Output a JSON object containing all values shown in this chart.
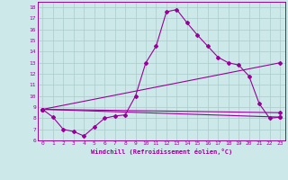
{
  "xlabel": "Windchill (Refroidissement éolien,°C)",
  "bg_color": "#cce8e8",
  "line_color": "#990099",
  "grid_color": "#aacccc",
  "xlim": [
    -0.5,
    23.5
  ],
  "ylim": [
    6.0,
    18.5
  ],
  "xticks": [
    0,
    1,
    2,
    3,
    4,
    5,
    6,
    7,
    8,
    9,
    10,
    11,
    12,
    13,
    14,
    15,
    16,
    17,
    18,
    19,
    20,
    21,
    22,
    23
  ],
  "yticks": [
    6,
    7,
    8,
    9,
    10,
    11,
    12,
    13,
    14,
    15,
    16,
    17,
    18
  ],
  "line1_x": [
    0,
    1,
    2,
    3,
    4,
    5,
    6,
    7,
    8,
    9,
    10,
    11,
    12,
    13,
    14,
    15,
    16,
    17,
    18,
    19,
    20,
    21,
    22,
    23
  ],
  "line1_y": [
    8.8,
    8.1,
    7.0,
    6.8,
    6.4,
    7.2,
    8.0,
    8.2,
    8.3,
    10.0,
    13.0,
    14.5,
    17.6,
    17.8,
    16.6,
    15.5,
    14.5,
    13.5,
    13.0,
    12.8,
    11.8,
    9.3,
    8.0,
    8.1
  ],
  "line2_x": [
    0,
    23
  ],
  "line2_y": [
    8.8,
    8.1
  ],
  "line3_x": [
    0,
    23
  ],
  "line3_y": [
    8.8,
    8.5
  ],
  "line4_x": [
    0,
    23
  ],
  "line4_y": [
    8.8,
    13.0
  ]
}
